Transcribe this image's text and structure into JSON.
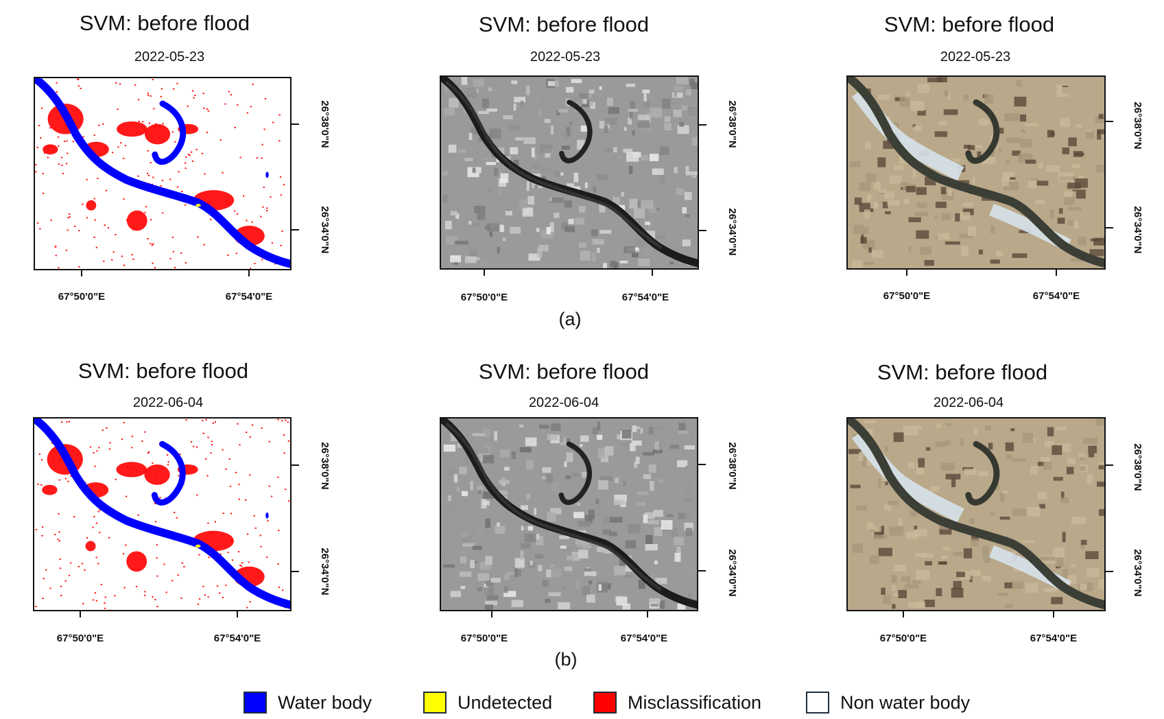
{
  "panels": [
    {
      "title": "SVM: before flood",
      "date": "2022-05-23",
      "type": "classification",
      "x_ticks": [
        "67°50'0\"E",
        "67°54'0\"E"
      ],
      "y_ticks": [
        "26°38'0\"N",
        "26°34'0\"N"
      ]
    },
    {
      "title": "SVM: before flood",
      "date": "2022-05-23",
      "type": "sar",
      "x_ticks": [
        "67°50'0\"E",
        "67°54'0\"E"
      ],
      "y_ticks": [
        "26°38'0\"N",
        "26°34'0\"N"
      ]
    },
    {
      "title": "SVM: before flood",
      "date": "2022-05-23",
      "type": "optical",
      "x_ticks": [
        "67°50'0\"E",
        "67°54'0\"E"
      ],
      "y_ticks": [
        "26°38'0\"N",
        "26°34'0\"N"
      ]
    },
    {
      "title": "SVM: before flood",
      "date": "2022-06-04",
      "type": "classification",
      "x_ticks": [
        "67°50'0\"E",
        "67°54'0\"E"
      ],
      "y_ticks": [
        "26°38'0\"N",
        "26°34'0\"N"
      ]
    },
    {
      "title": "SVM: before flood",
      "date": "2022-06-04",
      "type": "sar",
      "x_ticks": [
        "67°50'0\"E",
        "67°54'0\"E"
      ],
      "y_ticks": [
        "26°38'0\"N",
        "26°34'0\"N"
      ]
    },
    {
      "title": "SVM: before flood",
      "date": "2022-06-04",
      "type": "optical",
      "x_ticks": [
        "67°50'0\"E",
        "67°54'0\"E"
      ],
      "y_ticks": [
        "26°38'0\"N",
        "26°34'0\"N"
      ]
    }
  ],
  "row_labels": [
    "(a)",
    "(b)"
  ],
  "legend": [
    {
      "label": "Water body",
      "color": "#0000ff"
    },
    {
      "label": "Undetected",
      "color": "#ffff00"
    },
    {
      "label": "Misclassification",
      "color": "#ff0000"
    },
    {
      "label": "Non water body",
      "color": "#ffffff"
    }
  ]
}
